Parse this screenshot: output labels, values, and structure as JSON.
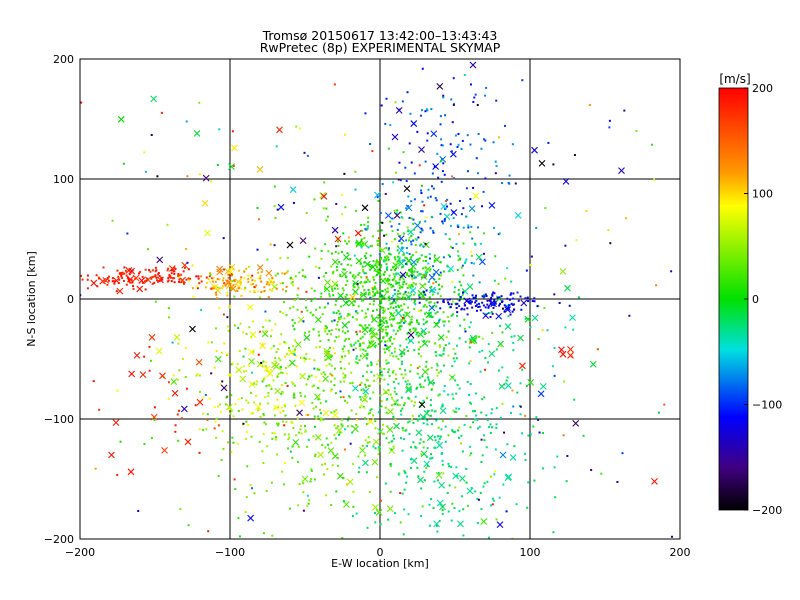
{
  "chart_data": {
    "type": "scatter",
    "title": "Tromsø 20150617 13:42:00–13:43:43",
    "subtitle": "RwPretec (8p) EXPERIMENTAL SKYMAP",
    "xlabel": "E-W location [km]",
    "ylabel": "N-S location [km]",
    "xlim": [
      -200,
      200
    ],
    "ylim": [
      -200,
      200
    ],
    "xticks": [
      -200,
      -100,
      0,
      100,
      200
    ],
    "yticks": [
      -200,
      -100,
      0,
      100,
      200
    ],
    "grid": true,
    "colorbar": {
      "label": "[m/s]",
      "range": [
        -200,
        200
      ],
      "ticks": [
        200,
        100,
        0,
        -100,
        -200
      ],
      "colormap": "rainbow (black-purple-blue-cyan-green-yellow-red)"
    },
    "markers": [
      "dot",
      "x-cross"
    ],
    "clusters": [
      {
        "cx": 5,
        "cy": 5,
        "sx": 25,
        "sy": 30,
        "n": 650,
        "vmin": -5,
        "vmax": 35
      },
      {
        "cx": -25,
        "cy": -70,
        "sx": 45,
        "sy": 55,
        "n": 600,
        "vmin": 15,
        "vmax": 60
      },
      {
        "cx": 40,
        "cy": -90,
        "sx": 35,
        "sy": 55,
        "n": 450,
        "vmin": -40,
        "vmax": -10
      },
      {
        "cx": -150,
        "cy": 18,
        "sx": 25,
        "sy": 5,
        "n": 150,
        "vmin": 170,
        "vmax": 200
      },
      {
        "cx": -95,
        "cy": 14,
        "sx": 18,
        "sy": 6,
        "n": 110,
        "vmin": 90,
        "vmax": 140
      },
      {
        "cx": 70,
        "cy": -5,
        "sx": 18,
        "sy": 5,
        "n": 120,
        "vmin": -130,
        "vmax": -90
      },
      {
        "cx": 45,
        "cy": 115,
        "sx": 25,
        "sy": 40,
        "n": 140,
        "vmin": -110,
        "vmax": -60
      },
      {
        "cx": 30,
        "cy": 40,
        "sx": 25,
        "sy": 25,
        "n": 120,
        "vmin": -90,
        "vmax": -40
      },
      {
        "cx": -75,
        "cy": -70,
        "sx": 25,
        "sy": 30,
        "n": 150,
        "vmin": 60,
        "vmax": 100
      },
      {
        "cx": -150,
        "cy": -95,
        "sx": 30,
        "sy": 35,
        "n": 30,
        "vmin": 160,
        "vmax": 200
      },
      {
        "cx": 0,
        "cy": 0,
        "sx": 110,
        "sy": 110,
        "n": 300,
        "vmin": -200,
        "vmax": 200
      }
    ],
    "points": [
      {
        "x": -122,
        "y": 138,
        "v": -10,
        "m": "x"
      },
      {
        "x": -97,
        "y": 126,
        "v": 95,
        "m": "x"
      },
      {
        "x": -67,
        "y": 141,
        "v": 180,
        "m": "x"
      },
      {
        "x": -80,
        "y": 108,
        "v": 110,
        "m": "x"
      },
      {
        "x": -162,
        "y": -47,
        "v": 185,
        "m": "x"
      },
      {
        "x": -158,
        "y": -63,
        "v": 180,
        "m": "x"
      },
      {
        "x": -152,
        "y": -32,
        "v": 175,
        "m": "x"
      },
      {
        "x": -145,
        "y": -64,
        "v": 175,
        "m": "x"
      },
      {
        "x": -176,
        "y": -103,
        "v": 185,
        "m": "x"
      },
      {
        "x": -179,
        "y": -130,
        "v": 190,
        "m": "x"
      },
      {
        "x": -166,
        "y": -144,
        "v": 190,
        "m": "x"
      },
      {
        "x": -128,
        "y": -119,
        "v": 185,
        "m": "x"
      },
      {
        "x": -120,
        "y": -86,
        "v": 180,
        "m": "x"
      },
      {
        "x": -125,
        "y": -25,
        "v": -200,
        "m": "x"
      },
      {
        "x": 122,
        "y": -46,
        "v": 190,
        "m": "x"
      },
      {
        "x": 127,
        "y": -47,
        "v": 185,
        "m": "x"
      },
      {
        "x": 127,
        "y": -42,
        "v": 180,
        "m": "x"
      },
      {
        "x": 183,
        "y": -152,
        "v": 190,
        "m": "x"
      },
      {
        "x": 62,
        "y": 195,
        "v": -130,
        "m": "x"
      },
      {
        "x": 103,
        "y": 124,
        "v": -110,
        "m": "x"
      },
      {
        "x": 108,
        "y": 113,
        "v": -200,
        "m": "x"
      },
      {
        "x": 124,
        "y": 98,
        "v": -110,
        "m": "x"
      },
      {
        "x": 161,
        "y": 107,
        "v": -120,
        "m": "x"
      },
      {
        "x": 122,
        "y": 23,
        "v": 50,
        "m": "x"
      },
      {
        "x": 125,
        "y": 9,
        "v": -20,
        "m": "x"
      },
      {
        "x": -115,
        "y": 55,
        "v": 80,
        "m": "x"
      },
      {
        "x": -60,
        "y": 45,
        "v": -200,
        "m": "x"
      },
      {
        "x": 10,
        "y": 135,
        "v": -120,
        "m": "x"
      },
      {
        "x": 18,
        "y": 92,
        "v": -200,
        "m": "x"
      },
      {
        "x": -10,
        "y": 76,
        "v": -200,
        "m": "x"
      },
      {
        "x": -28,
        "y": 50,
        "v": 185,
        "m": "x"
      },
      {
        "x": 82,
        "y": -130,
        "v": -70,
        "m": "x"
      },
      {
        "x": 80,
        "y": -188,
        "v": -110,
        "m": "x"
      },
      {
        "x": 60,
        "y": -160,
        "v": -30,
        "m": "x"
      },
      {
        "x": 28,
        "y": -88,
        "v": -200,
        "m": "x"
      },
      {
        "x": -50,
        "y": -150,
        "v": 40,
        "m": "x"
      }
    ]
  }
}
